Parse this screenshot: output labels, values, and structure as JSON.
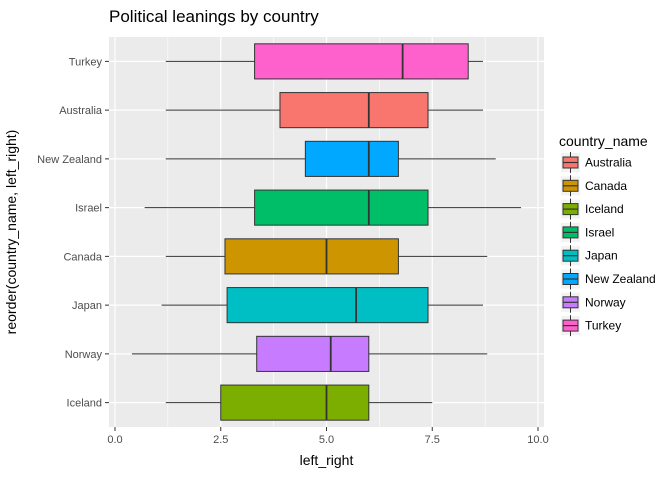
{
  "chart_data": {
    "type": "boxplot",
    "orientation": "horizontal",
    "title": "Political leanings by country",
    "xlabel": "left_right",
    "ylabel": "reorder(country_name, left_right)",
    "xlim": [
      0,
      10
    ],
    "xticks": [
      0,
      2.5,
      5,
      7.5,
      10
    ],
    "xtick_labels": [
      "0.0",
      "2.5",
      "5.0",
      "7.5",
      "10.0"
    ],
    "grid": true,
    "legend": {
      "title": "country_name",
      "position": "right",
      "entries": [
        {
          "name": "Australia",
          "color": "#F8766D"
        },
        {
          "name": "Canada",
          "color": "#CD9600"
        },
        {
          "name": "Iceland",
          "color": "#7CAE00"
        },
        {
          "name": "Israel",
          "color": "#00BE67"
        },
        {
          "name": "Japan",
          "color": "#00BFC4"
        },
        {
          "name": "New Zealand",
          "color": "#00A9FF"
        },
        {
          "name": "Norway",
          "color": "#C77CFF"
        },
        {
          "name": "Turkey",
          "color": "#FF61CC"
        }
      ]
    },
    "categories": [
      "Turkey",
      "Australia",
      "New Zealand",
      "Israel",
      "Canada",
      "Japan",
      "Norway",
      "Iceland"
    ],
    "boxes": [
      {
        "name": "Turkey",
        "whisker_low": 1.2,
        "q1": 3.3,
        "median": 6.8,
        "q3": 8.35,
        "whisker_high": 8.7,
        "color": "#FF61CC"
      },
      {
        "name": "Australia",
        "whisker_low": 1.2,
        "q1": 3.9,
        "median": 6.0,
        "q3": 7.4,
        "whisker_high": 8.7,
        "color": "#F8766D"
      },
      {
        "name": "New Zealand",
        "whisker_low": 1.2,
        "q1": 4.5,
        "median": 6.0,
        "q3": 6.7,
        "whisker_high": 9.0,
        "color": "#00A9FF"
      },
      {
        "name": "Israel",
        "whisker_low": 0.7,
        "q1": 3.3,
        "median": 6.0,
        "q3": 7.4,
        "whisker_high": 9.6,
        "color": "#00BE67"
      },
      {
        "name": "Canada",
        "whisker_low": 1.2,
        "q1": 2.6,
        "median": 5.0,
        "q3": 6.7,
        "whisker_high": 8.8,
        "color": "#CD9600"
      },
      {
        "name": "Japan",
        "whisker_low": 1.1,
        "q1": 2.65,
        "median": 5.7,
        "q3": 7.4,
        "whisker_high": 8.7,
        "color": "#00BFC4"
      },
      {
        "name": "Norway",
        "whisker_low": 0.4,
        "q1": 3.35,
        "median": 5.1,
        "q3": 6.0,
        "whisker_high": 8.8,
        "color": "#C77CFF"
      },
      {
        "name": "Iceland",
        "whisker_low": 1.2,
        "q1": 2.5,
        "median": 5.0,
        "q3": 6.0,
        "whisker_high": 7.5,
        "color": "#7CAE00"
      }
    ]
  }
}
